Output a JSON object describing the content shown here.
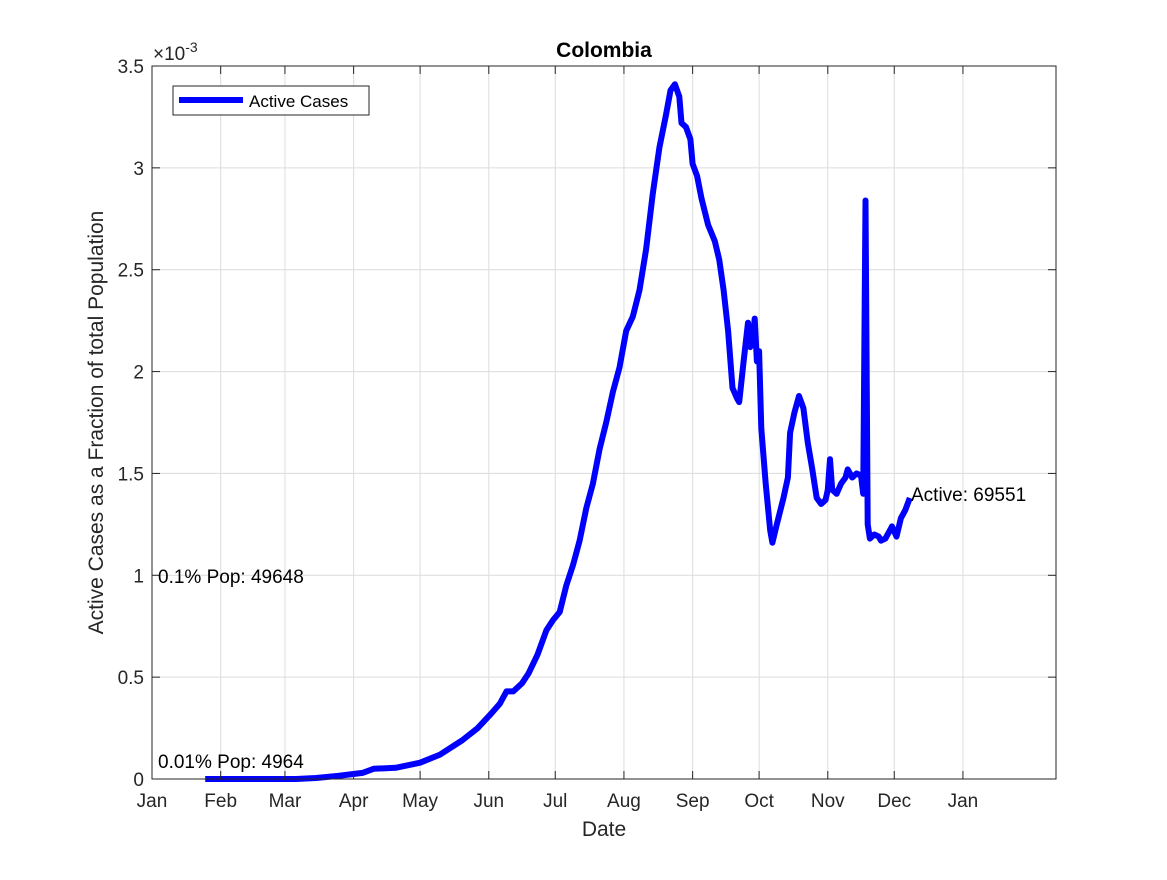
{
  "chart_data": {
    "type": "line",
    "title": "Colombia",
    "xlabel": "Date",
    "ylabel": "Active Cases as a Fraction of total Population",
    "y_exponent_label": "×10",
    "y_exponent_power": "-3",
    "y_scale": 0.001,
    "xlim": [
      "2020-01-01",
      "2021-02-12"
    ],
    "ylim": [
      0,
      3.5
    ],
    "grid": true,
    "legend_position": "top-left",
    "x_ticks": [
      {
        "date": "2020-01-01",
        "label": "Jan"
      },
      {
        "date": "2020-02-01",
        "label": "Feb"
      },
      {
        "date": "2020-03-01",
        "label": "Mar"
      },
      {
        "date": "2020-04-01",
        "label": "Apr"
      },
      {
        "date": "2020-05-01",
        "label": "May"
      },
      {
        "date": "2020-06-01",
        "label": "Jun"
      },
      {
        "date": "2020-07-01",
        "label": "Jul"
      },
      {
        "date": "2020-08-01",
        "label": "Aug"
      },
      {
        "date": "2020-09-01",
        "label": "Sep"
      },
      {
        "date": "2020-10-01",
        "label": "Oct"
      },
      {
        "date": "2020-11-01",
        "label": "Nov"
      },
      {
        "date": "2020-12-01",
        "label": "Dec"
      },
      {
        "date": "2021-01-01",
        "label": "Jan"
      }
    ],
    "y_ticks": [
      {
        "value": 0,
        "label": "0"
      },
      {
        "value": 0.5,
        "label": "0.5"
      },
      {
        "value": 1,
        "label": "1"
      },
      {
        "value": 1.5,
        "label": "1.5"
      },
      {
        "value": 2,
        "label": "2"
      },
      {
        "value": 2.5,
        "label": "2.5"
      },
      {
        "value": 3,
        "label": "3"
      },
      {
        "value": 3.5,
        "label": "3.5"
      }
    ],
    "annotations": {
      "pop_01": "0.1% Pop: 49648",
      "pop_001": "0.01% Pop: 4964",
      "active": "Active: 69551"
    },
    "series": [
      {
        "name": "Active Cases",
        "color": "#0000ff",
        "points": [
          [
            "2020-01-25",
            0
          ],
          [
            "2020-02-20",
            0
          ],
          [
            "2020-03-06",
            0.0
          ],
          [
            "2020-03-15",
            0.005
          ],
          [
            "2020-03-25",
            0.015
          ],
          [
            "2020-04-05",
            0.03
          ],
          [
            "2020-04-10",
            0.05
          ],
          [
            "2020-04-20",
            0.055
          ],
          [
            "2020-05-01",
            0.08
          ],
          [
            "2020-05-10",
            0.12
          ],
          [
            "2020-05-20",
            0.19
          ],
          [
            "2020-05-27",
            0.25
          ],
          [
            "2020-06-02",
            0.32
          ],
          [
            "2020-06-06",
            0.37
          ],
          [
            "2020-06-09",
            0.43
          ],
          [
            "2020-06-12",
            0.43
          ],
          [
            "2020-06-16",
            0.47
          ],
          [
            "2020-06-19",
            0.52
          ],
          [
            "2020-06-23",
            0.61
          ],
          [
            "2020-06-27",
            0.73
          ],
          [
            "2020-06-30",
            0.78
          ],
          [
            "2020-07-03",
            0.82
          ],
          [
            "2020-07-06",
            0.95
          ],
          [
            "2020-07-09",
            1.05
          ],
          [
            "2020-07-12",
            1.17
          ],
          [
            "2020-07-15",
            1.33
          ],
          [
            "2020-07-18",
            1.45
          ],
          [
            "2020-07-21",
            1.62
          ],
          [
            "2020-07-24",
            1.75
          ],
          [
            "2020-07-27",
            1.9
          ],
          [
            "2020-07-30",
            2.02
          ],
          [
            "2020-08-02",
            2.2
          ],
          [
            "2020-08-05",
            2.27
          ],
          [
            "2020-08-08",
            2.4
          ],
          [
            "2020-08-11",
            2.6
          ],
          [
            "2020-08-14",
            2.87
          ],
          [
            "2020-08-17",
            3.1
          ],
          [
            "2020-08-20",
            3.26
          ],
          [
            "2020-08-22",
            3.38
          ],
          [
            "2020-08-24",
            3.41
          ],
          [
            "2020-08-26",
            3.35
          ],
          [
            "2020-08-27",
            3.22
          ],
          [
            "2020-08-29",
            3.2
          ],
          [
            "2020-08-31",
            3.14
          ],
          [
            "2020-09-01",
            3.02
          ],
          [
            "2020-09-03",
            2.96
          ],
          [
            "2020-09-05",
            2.85
          ],
          [
            "2020-09-08",
            2.72
          ],
          [
            "2020-09-11",
            2.64
          ],
          [
            "2020-09-13",
            2.55
          ],
          [
            "2020-09-15",
            2.4
          ],
          [
            "2020-09-17",
            2.2
          ],
          [
            "2020-09-19",
            1.92
          ],
          [
            "2020-09-21",
            1.87
          ],
          [
            "2020-09-22",
            1.85
          ],
          [
            "2020-09-24",
            2.05
          ],
          [
            "2020-09-26",
            2.24
          ],
          [
            "2020-09-27",
            2.12
          ],
          [
            "2020-09-28",
            2.15
          ],
          [
            "2020-09-29",
            2.26
          ],
          [
            "2020-09-30",
            2.05
          ],
          [
            "2020-10-01",
            2.1
          ],
          [
            "2020-10-02",
            1.72
          ],
          [
            "2020-10-04",
            1.45
          ],
          [
            "2020-10-06",
            1.22
          ],
          [
            "2020-10-07",
            1.16
          ],
          [
            "2020-10-09",
            1.25
          ],
          [
            "2020-10-12",
            1.38
          ],
          [
            "2020-10-14",
            1.48
          ],
          [
            "2020-10-15",
            1.7
          ],
          [
            "2020-10-17",
            1.8
          ],
          [
            "2020-10-19",
            1.88
          ],
          [
            "2020-10-21",
            1.82
          ],
          [
            "2020-10-23",
            1.65
          ],
          [
            "2020-10-25",
            1.52
          ],
          [
            "2020-10-27",
            1.38
          ],
          [
            "2020-10-29",
            1.35
          ],
          [
            "2020-10-31",
            1.37
          ],
          [
            "2020-11-01",
            1.42
          ],
          [
            "2020-11-02",
            1.57
          ],
          [
            "2020-11-03",
            1.42
          ],
          [
            "2020-11-05",
            1.4
          ],
          [
            "2020-11-07",
            1.45
          ],
          [
            "2020-11-09",
            1.48
          ],
          [
            "2020-11-10",
            1.52
          ],
          [
            "2020-11-12",
            1.48
          ],
          [
            "2020-11-14",
            1.5
          ],
          [
            "2020-11-16",
            1.49
          ],
          [
            "2020-11-17",
            1.4
          ],
          [
            "2020-11-18",
            2.84
          ],
          [
            "2020-11-19",
            1.25
          ],
          [
            "2020-11-20",
            1.18
          ],
          [
            "2020-11-22",
            1.2
          ],
          [
            "2020-11-24",
            1.19
          ],
          [
            "2020-11-25",
            1.17
          ],
          [
            "2020-11-27",
            1.18
          ],
          [
            "2020-11-29",
            1.22
          ],
          [
            "2020-11-30",
            1.24
          ],
          [
            "2020-12-02",
            1.19
          ],
          [
            "2020-12-04",
            1.28
          ],
          [
            "2020-12-06",
            1.32
          ],
          [
            "2020-12-08",
            1.38
          ]
        ]
      }
    ]
  }
}
